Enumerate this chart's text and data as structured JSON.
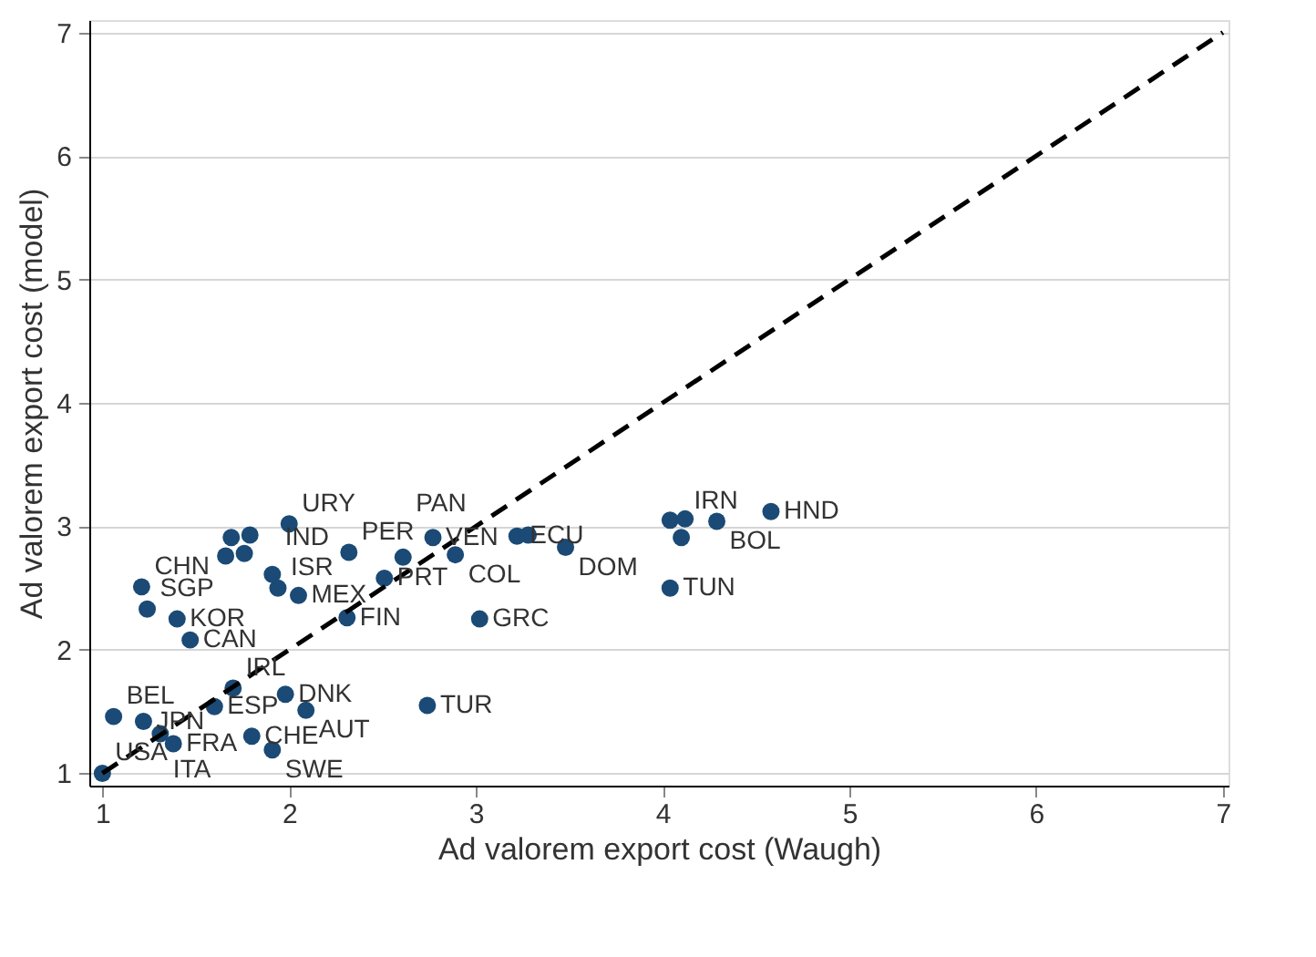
{
  "chart_data": {
    "type": "scatter",
    "xlabel": "Ad valorem export cost (Waugh)",
    "ylabel": "Ad valorem export cost (model)",
    "xlim": [
      0.93,
      7.03
    ],
    "ylim": [
      0.9,
      7.1
    ],
    "xticks": [
      1,
      2,
      3,
      4,
      5,
      6,
      7
    ],
    "yticks": [
      1,
      2,
      3,
      4,
      5,
      6,
      7
    ],
    "grid": "y",
    "series": [
      {
        "color": "#1a4a75",
        "marker": "circle",
        "x": [
          1.0,
          1.06,
          1.22,
          1.31,
          1.38,
          1.6,
          1.7,
          1.98,
          2.09,
          1.8,
          1.91,
          2.74,
          1.47,
          1.4,
          1.24,
          1.21,
          2.31,
          3.02,
          2.05,
          1.94,
          1.91,
          2.51,
          2.0,
          2.77,
          2.32,
          2.61,
          2.89,
          3.22,
          3.28,
          3.48,
          4.04,
          4.12,
          4.29,
          4.58,
          4.1,
          4.04,
          1.69,
          1.79,
          1.66,
          1.76
        ],
        "values": [
          1.0,
          1.46,
          1.42,
          1.32,
          1.24,
          1.54,
          1.69,
          1.64,
          1.51,
          1.3,
          1.19,
          1.55,
          2.08,
          2.25,
          2.33,
          2.51,
          2.26,
          2.25,
          2.44,
          2.5,
          2.61,
          2.58,
          3.02,
          2.91,
          2.79,
          2.75,
          2.77,
          2.92,
          2.93,
          2.83,
          3.05,
          3.06,
          3.04,
          3.12,
          2.91,
          2.5,
          2.91,
          2.93,
          2.76,
          2.78
        ]
      },
      {
        "type": "line",
        "color": "#000000",
        "line_style": "dashed",
        "marker": "none",
        "x": [
          1,
          7
        ],
        "values": [
          1,
          7
        ]
      }
    ],
    "annotations": [
      {
        "text": "USA",
        "x": 1.0,
        "y": 1.0
      },
      {
        "text": "BEL",
        "x": 1.06,
        "y": 1.46
      },
      {
        "text": "JPN",
        "x": 1.22,
        "y": 1.42
      },
      {
        "text": "ITA",
        "x": 1.31,
        "y": 1.32
      },
      {
        "text": "FRA",
        "x": 1.38,
        "y": 1.24
      },
      {
        "text": "ESP",
        "x": 1.6,
        "y": 1.54
      },
      {
        "text": "IRL",
        "x": 1.7,
        "y": 1.69
      },
      {
        "text": "DNK",
        "x": 1.98,
        "y": 1.64
      },
      {
        "text": "AUT",
        "x": 2.09,
        "y": 1.51
      },
      {
        "text": "CHE",
        "x": 1.8,
        "y": 1.3
      },
      {
        "text": "SWE",
        "x": 1.91,
        "y": 1.19
      },
      {
        "text": "TUR",
        "x": 2.74,
        "y": 1.55
      },
      {
        "text": "CAN",
        "x": 1.47,
        "y": 2.08
      },
      {
        "text": "KOR",
        "x": 1.4,
        "y": 2.25
      },
      {
        "text": "SGP",
        "x": 1.24,
        "y": 2.33
      },
      {
        "text": "CHN",
        "x": 1.21,
        "y": 2.51
      },
      {
        "text": "FIN",
        "x": 2.31,
        "y": 2.26
      },
      {
        "text": "GRC",
        "x": 3.02,
        "y": 2.25
      },
      {
        "text": "MEX",
        "x": 2.05,
        "y": 2.44
      },
      {
        "text": "ISR",
        "x": 1.94,
        "y": 2.5
      },
      {
        "text": "IND",
        "x": 1.91,
        "y": 2.61
      },
      {
        "text": "PRT",
        "x": 2.51,
        "y": 2.58
      },
      {
        "text": "URY",
        "x": 2.0,
        "y": 3.02
      },
      {
        "text": "VEN",
        "x": 2.77,
        "y": 2.91
      },
      {
        "text": "PER",
        "x": 2.32,
        "y": 2.79
      },
      {
        "text": "PAN",
        "x": 2.61,
        "y": 2.75
      },
      {
        "text": "COL",
        "x": 2.89,
        "y": 2.77
      },
      {
        "text": "ECU",
        "x": 3.22,
        "y": 2.92
      },
      {
        "text": "DOM",
        "x": 3.48,
        "y": 2.83
      },
      {
        "text": "BOL",
        "x": 4.29,
        "y": 3.04
      },
      {
        "text": "HND",
        "x": 4.58,
        "y": 3.12
      },
      {
        "text": "IRN",
        "x": 4.1,
        "y": 2.91
      },
      {
        "text": "TUN",
        "x": 4.04,
        "y": 2.5
      }
    ]
  }
}
